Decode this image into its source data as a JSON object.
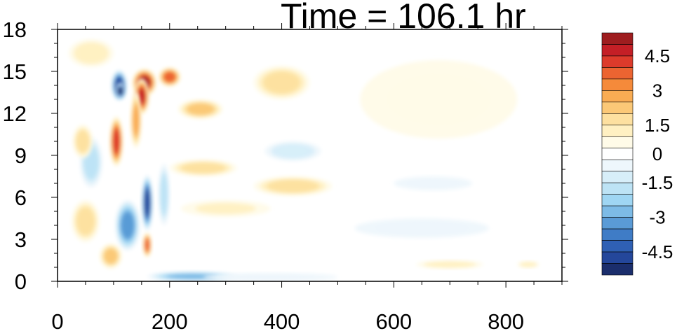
{
  "chart_data": {
    "type": "heatmap",
    "title": "Time = 106.1 hr",
    "xlabel": "",
    "ylabel": "",
    "xlim": [
      0,
      900
    ],
    "ylim": [
      0,
      18
    ],
    "x_ticks": [
      "0",
      "200",
      "400",
      "600",
      "800"
    ],
    "y_ticks": [
      "0",
      "3",
      "6",
      "9",
      "12",
      "15",
      "18"
    ],
    "colorbar": {
      "levels": [
        -5.5,
        -5,
        -4.5,
        -4,
        -3.5,
        -3,
        -2.5,
        -2,
        -1.5,
        -1,
        -0.5,
        0.5,
        1,
        1.5,
        2,
        2.5,
        3,
        3.5,
        4,
        4.5,
        5,
        5.5
      ],
      "colors": [
        "#1b2e6c",
        "#24479b",
        "#2f60b4",
        "#3f7cc6",
        "#5a9bd6",
        "#7dbbe6",
        "#9fd6f3",
        "#bde3f5",
        "#d7eef9",
        "#eef7fc",
        "#ffffff",
        "#fffbe8",
        "#fff0c2",
        "#fde0a0",
        "#fbc877",
        "#f9ac53",
        "#f58a3a",
        "#ec6431",
        "#dd3b2b",
        "#c41f26",
        "#9e1d1f"
      ],
      "tick_labels": [
        "4.5",
        "3",
        "1.5",
        "0",
        "-1.5",
        "-3",
        "-4.5"
      ]
    },
    "features": [
      {
        "x": 110,
        "y": 14.0,
        "rx": 14,
        "ry": 1.1,
        "v": -4.8
      },
      {
        "x": 112,
        "y": 13.6,
        "rx": 9,
        "ry": 0.6,
        "v": -5.5
      },
      {
        "x": 155,
        "y": 14.2,
        "rx": 22,
        "ry": 1.0,
        "v": 5.0
      },
      {
        "x": 150,
        "y": 13.2,
        "rx": 14,
        "ry": 1.3,
        "v": 4.5
      },
      {
        "x": 200,
        "y": 14.6,
        "rx": 20,
        "ry": 0.7,
        "v": 3.6
      },
      {
        "x": 105,
        "y": 10.0,
        "rx": 12,
        "ry": 1.8,
        "v": 4.2
      },
      {
        "x": 140,
        "y": 11.5,
        "rx": 10,
        "ry": 2.0,
        "v": 2.8
      },
      {
        "x": 160,
        "y": 5.6,
        "rx": 10,
        "ry": 2.0,
        "v": -4.6
      },
      {
        "x": 125,
        "y": 4.0,
        "rx": 22,
        "ry": 1.8,
        "v": -3.2
      },
      {
        "x": 190,
        "y": 6.2,
        "rx": 10,
        "ry": 2.2,
        "v": -2.0
      },
      {
        "x": 160,
        "y": 2.6,
        "rx": 8,
        "ry": 0.9,
        "v": 3.6
      },
      {
        "x": 95,
        "y": 1.8,
        "rx": 20,
        "ry": 0.9,
        "v": 2.2
      },
      {
        "x": 50,
        "y": 4.3,
        "rx": 25,
        "ry": 1.5,
        "v": 1.6
      },
      {
        "x": 60,
        "y": 8.5,
        "rx": 20,
        "ry": 1.8,
        "v": -1.8
      },
      {
        "x": 45,
        "y": 10.0,
        "rx": 18,
        "ry": 1.2,
        "v": 1.8
      },
      {
        "x": 60,
        "y": 16.3,
        "rx": 40,
        "ry": 1.0,
        "v": 1.3
      },
      {
        "x": 240,
        "y": 0.35,
        "rx": 80,
        "ry": 0.35,
        "v": -3.0
      },
      {
        "x": 380,
        "y": 0.3,
        "rx": 120,
        "ry": 0.3,
        "v": -1.0
      },
      {
        "x": 255,
        "y": 12.3,
        "rx": 40,
        "ry": 0.7,
        "v": 2.4
      },
      {
        "x": 400,
        "y": 14.2,
        "rx": 50,
        "ry": 1.2,
        "v": 1.6
      },
      {
        "x": 260,
        "y": 8.1,
        "rx": 60,
        "ry": 0.6,
        "v": 1.8
      },
      {
        "x": 420,
        "y": 6.8,
        "rx": 70,
        "ry": 0.7,
        "v": 1.6
      },
      {
        "x": 420,
        "y": 9.3,
        "rx": 50,
        "ry": 0.7,
        "v": -1.2
      },
      {
        "x": 300,
        "y": 5.2,
        "rx": 80,
        "ry": 0.6,
        "v": 1.0
      },
      {
        "x": 680,
        "y": 13.0,
        "rx": 140,
        "ry": 2.8,
        "v": 0.9
      },
      {
        "x": 700,
        "y": 1.2,
        "rx": 60,
        "ry": 0.3,
        "v": 1.2
      },
      {
        "x": 840,
        "y": 1.2,
        "rx": 20,
        "ry": 0.25,
        "v": 1.2
      },
      {
        "x": 650,
        "y": 3.8,
        "rx": 120,
        "ry": 0.7,
        "v": -0.8
      },
      {
        "x": 670,
        "y": 7.0,
        "rx": 70,
        "ry": 0.5,
        "v": -0.8
      }
    ]
  }
}
